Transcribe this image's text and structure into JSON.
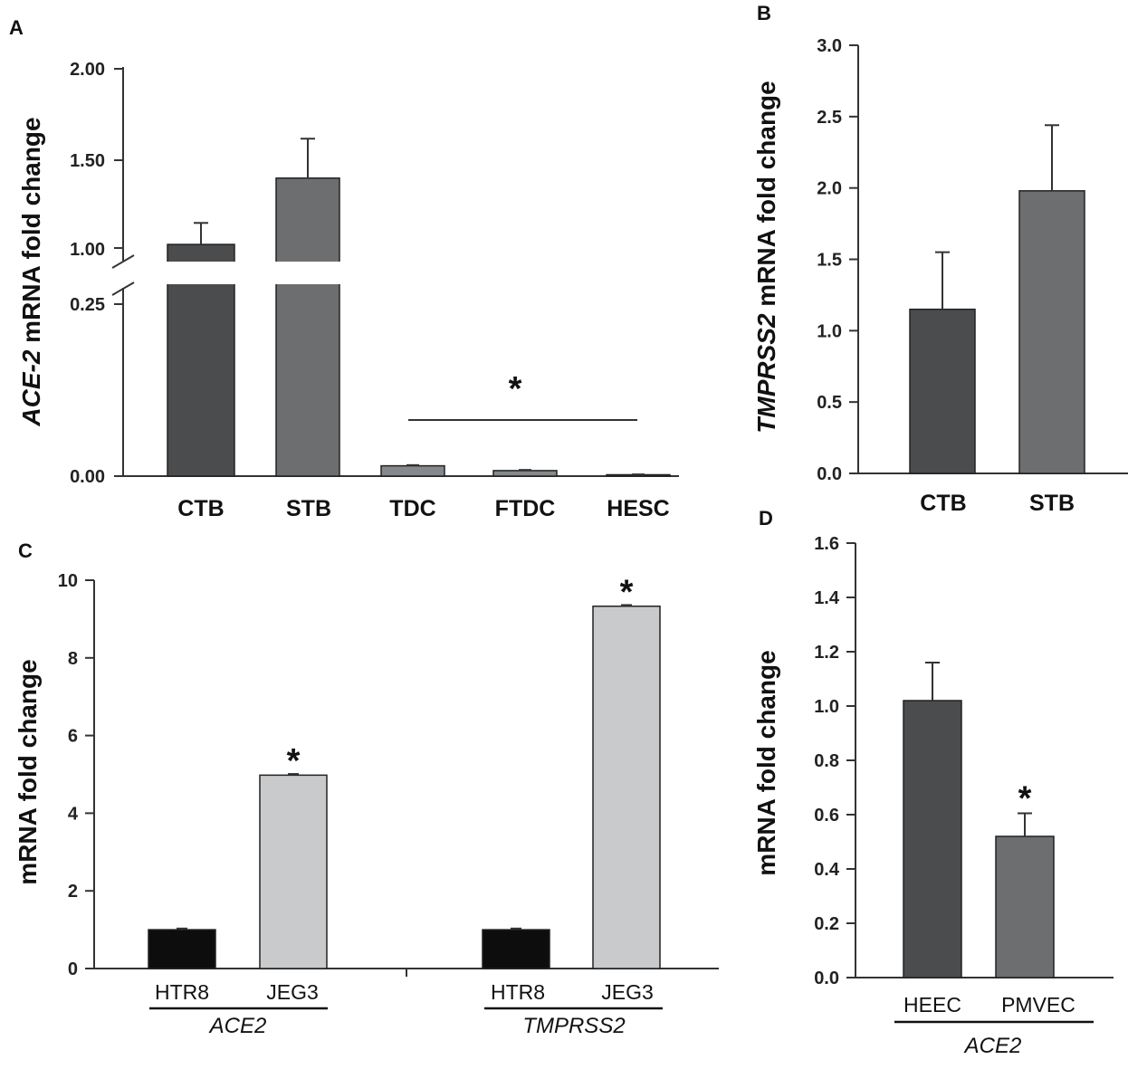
{
  "panels": {
    "a": "A",
    "b": "B",
    "c": "C",
    "d": "D"
  },
  "colors": {
    "dark": "#4a4c4e",
    "medium": "#6c6e70",
    "light_a": "#86898b",
    "pale": "#c9cacb",
    "black": "#0d0d0d"
  },
  "chart_data": [
    {
      "id": "A",
      "type": "bar",
      "ylabel_italic": "ACE-2",
      "ylabel_rest": " mRNA fold change",
      "y_break": [
        0.25,
        1.0
      ],
      "ylim_lower": [
        0,
        0.25
      ],
      "ylim_upper": [
        1.0,
        2.0
      ],
      "yticks": [
        "0.00",
        "0.25",
        "1.00",
        "1.50",
        "2.00"
      ],
      "categories": [
        "CTB",
        "STB",
        "TDC",
        "FTDC",
        "HESC"
      ],
      "values": [
        1.02,
        1.39,
        0.015,
        0.008,
        0.002
      ],
      "errors": [
        0.12,
        0.22,
        0.001,
        0.001,
        0.0005
      ],
      "colors": [
        "#4a4c4e",
        "#6c6e70",
        "#86898b",
        "#86898b",
        "#86898b"
      ],
      "significance": {
        "label": "*",
        "from": "TDC",
        "to": "HESC"
      }
    },
    {
      "id": "B",
      "type": "bar",
      "ylabel_italic": "TMPRSS2",
      "ylabel_rest": " mRNA fold change",
      "ylim": [
        0,
        3.0
      ],
      "yticks": [
        "0.0",
        "0.5",
        "1.0",
        "1.5",
        "2.0",
        "2.5",
        "3.0"
      ],
      "categories": [
        "CTB",
        "STB"
      ],
      "values": [
        1.15,
        1.98
      ],
      "errors": [
        0.4,
        0.46
      ],
      "colors": [
        "#4a4c4e",
        "#6c6e70"
      ]
    },
    {
      "id": "C",
      "type": "bar",
      "ylabel": "mRNA fold change",
      "ylim": [
        0,
        10
      ],
      "yticks": [
        "0",
        "2",
        "4",
        "6",
        "8",
        "10"
      ],
      "groups": [
        "ACE2",
        "TMPRSS2"
      ],
      "categories": [
        "HTR8",
        "JEG3"
      ],
      "series": [
        {
          "group": "ACE2",
          "values": [
            1.0,
            4.98
          ],
          "errors": [
            0.03,
            0.03
          ],
          "stars": [
            "",
            "*"
          ]
        },
        {
          "group": "TMPRSS2",
          "values": [
            1.0,
            9.33
          ],
          "errors": [
            0.03,
            0.03
          ],
          "stars": [
            "",
            "*"
          ]
        }
      ],
      "colors": [
        "#0d0d0d",
        "#c9cacb"
      ]
    },
    {
      "id": "D",
      "type": "bar",
      "ylabel": "mRNA fold change",
      "ylim": [
        0,
        1.6
      ],
      "yticks": [
        "0.0",
        "0.2",
        "0.4",
        "0.6",
        "0.8",
        "1.0",
        "1.2",
        "1.4",
        "1.6"
      ],
      "categories": [
        "HEEC",
        "PMVEC"
      ],
      "values": [
        1.02,
        0.52
      ],
      "errors": [
        0.14,
        0.085
      ],
      "stars": [
        "",
        "*"
      ],
      "group": "ACE2",
      "colors": [
        "#4a4c4e",
        "#6c6e70"
      ]
    }
  ]
}
